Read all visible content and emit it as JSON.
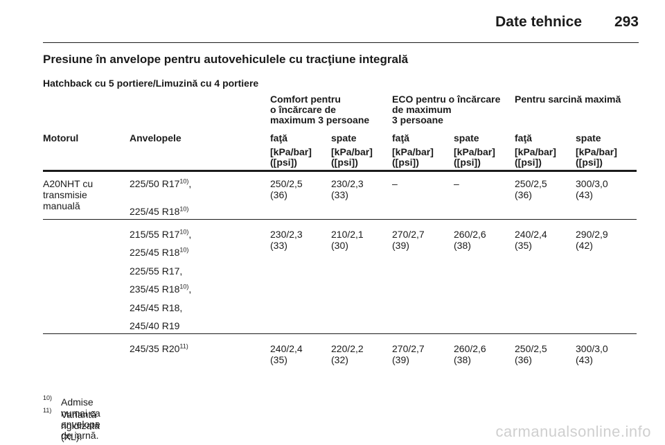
{
  "header": {
    "section_title": "Date tehnice",
    "page_number": "293"
  },
  "main_heading": "Presiune în anvelope pentru autovehiculele cu tracţiune integrală",
  "sub_heading": "Hatchback cu 5 portiere/Limuzină cu 4 portiere",
  "table": {
    "group_headers": [
      [
        "Comfort pentru",
        "o încărcare de",
        "maximum 3 persoane"
      ],
      [
        "ECO pentru o încărcare",
        "de maximum",
        "3 persoane"
      ],
      [
        "Pentru sarcină maximă"
      ]
    ],
    "col_headers": [
      "Motorul",
      "Anvelopele",
      "faţă",
      "spate",
      "faţă",
      "spate",
      "faţă",
      "spate"
    ],
    "unit_line1": "[kPa/bar]",
    "unit_line2": "([psi])",
    "engine": [
      "A20NHT cu",
      "transmisie",
      "manuală"
    ],
    "rows": [
      {
        "tyres": [
          {
            "text": "225/50 R17",
            "sup": "10)",
            "suffix": ","
          },
          {
            "text": "225/45 R18",
            "sup": "10)",
            "suffix": ""
          }
        ],
        "values": [
          [
            "250/2,5",
            "(36)"
          ],
          [
            "230/2,3",
            "(33)"
          ],
          [
            "–",
            ""
          ],
          [
            "–",
            ""
          ],
          [
            "250/2,5",
            "(36)"
          ],
          [
            "300/3,0",
            "(43)"
          ]
        ]
      },
      {
        "tyres": [
          {
            "text": "215/55 R17",
            "sup": "10)",
            "suffix": ","
          },
          {
            "text": "225/45 R18",
            "sup": "10)",
            "suffix": ""
          },
          {
            "text": "225/55 R17,",
            "sup": "",
            "suffix": ""
          },
          {
            "text": "235/45 R18",
            "sup": "10)",
            "suffix": ","
          },
          {
            "text": "245/45 R18,",
            "sup": "",
            "suffix": ""
          },
          {
            "text": "245/40 R19",
            "sup": "",
            "suffix": ""
          }
        ],
        "values": [
          [
            "230/2,3",
            "(33)"
          ],
          [
            "210/2,1",
            "(30)"
          ],
          [
            "270/2,7",
            "(39)"
          ],
          [
            "260/2,6",
            "(38)"
          ],
          [
            "240/2,4",
            "(35)"
          ],
          [
            "290/2,9",
            "(42)"
          ]
        ]
      },
      {
        "tyres": [
          {
            "text": "245/35 R20",
            "sup": "11)",
            "suffix": ""
          }
        ],
        "values": [
          [
            "240/2,4",
            "(35)"
          ],
          [
            "220/2,2",
            "(32)"
          ],
          [
            "270/2,7",
            "(39)"
          ],
          [
            "260/2,6",
            "(38)"
          ],
          [
            "250/2,5",
            "(36)"
          ],
          [
            "300/3,0",
            "(43)"
          ]
        ]
      }
    ]
  },
  "footnotes": [
    {
      "mark": "10)",
      "text": "Admise numai ca anvelope de iarnă."
    },
    {
      "mark": "11)",
      "text": "Variantă rigidizată (XL)."
    }
  ],
  "watermark": "carmanualsonline.info"
}
